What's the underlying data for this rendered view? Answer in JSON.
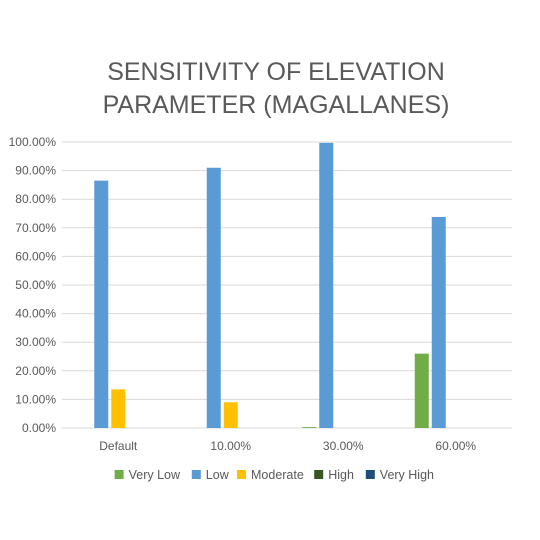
{
  "chart_data": {
    "type": "bar",
    "title_lines": [
      "SENSITIVITY OF ELEVATION",
      "PARAMETER (MAGALLANES)"
    ],
    "categories": [
      "Default",
      "10.00%",
      "30.00%",
      "60.00%"
    ],
    "series": [
      {
        "name": "Very Low",
        "color": "#70AD47",
        "values": [
          0.0,
          0.0,
          0.3,
          26.0
        ]
      },
      {
        "name": "Low",
        "color": "#5B9BD5",
        "values": [
          86.5,
          91.0,
          99.7,
          73.8
        ]
      },
      {
        "name": "Moderate",
        "color": "#FFC000",
        "values": [
          13.5,
          9.0,
          0.0,
          0.0
        ]
      },
      {
        "name": "High",
        "color": "#375623",
        "values": [
          0.0,
          0.0,
          0.0,
          0.0
        ]
      },
      {
        "name": "Very High",
        "color": "#1F4E79",
        "values": [
          0.0,
          0.0,
          0.0,
          0.0
        ]
      }
    ],
    "yticks": [
      "0.00%",
      "10.00%",
      "20.00%",
      "30.00%",
      "40.00%",
      "50.00%",
      "60.00%",
      "70.00%",
      "80.00%",
      "90.00%",
      "100.00%"
    ],
    "ylim": [
      0,
      100
    ],
    "grid": true,
    "legend_position": "bottom"
  }
}
